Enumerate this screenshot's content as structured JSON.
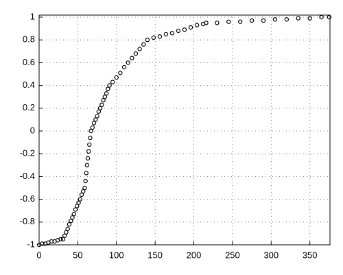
{
  "chart_data": {
    "type": "scatter",
    "x": [
      0,
      4,
      8,
      12,
      16,
      20,
      24,
      28,
      31,
      33,
      35,
      37,
      39,
      41,
      43,
      45,
      47,
      49,
      51,
      53,
      55,
      57,
      59,
      60,
      61,
      62,
      63,
      64,
      65,
      66,
      67,
      69,
      71,
      73,
      75,
      77,
      79,
      81,
      83,
      85,
      87,
      89,
      91,
      95,
      100,
      105,
      110,
      115,
      120,
      125,
      130,
      135,
      140,
      148,
      156,
      164,
      172,
      180,
      188,
      196,
      204,
      212,
      216,
      230,
      245,
      260,
      275,
      290,
      305,
      320,
      335,
      350,
      365,
      375
    ],
    "values": [
      -1,
      -0.99,
      -0.99,
      -0.98,
      -0.97,
      -0.97,
      -0.96,
      -0.95,
      -0.95,
      -0.92,
      -0.89,
      -0.86,
      -0.82,
      -0.79,
      -0.76,
      -0.73,
      -0.69,
      -0.66,
      -0.63,
      -0.6,
      -0.56,
      -0.53,
      -0.5,
      -0.44,
      -0.37,
      -0.3,
      -0.24,
      -0.18,
      -0.12,
      -0.06,
      0,
      0.03,
      0.07,
      0.1,
      0.13,
      0.17,
      0.2,
      0.23,
      0.27,
      0.3,
      0.33,
      0.37,
      0.4,
      0.43,
      0.47,
      0.51,
      0.56,
      0.6,
      0.64,
      0.68,
      0.72,
      0.76,
      0.8,
      0.82,
      0.83,
      0.85,
      0.86,
      0.88,
      0.89,
      0.91,
      0.93,
      0.94,
      0.95,
      0.95,
      0.96,
      0.96,
      0.97,
      0.97,
      0.98,
      0.98,
      0.99,
      0.99,
      1,
      1
    ],
    "color": "#000000",
    "xlim": [
      0,
      376
    ],
    "xticks": [
      0,
      50,
      100,
      150,
      200,
      250,
      300,
      350
    ],
    "ylim": [
      -1,
      1
    ],
    "yticks": [
      -1,
      -0.8,
      -0.6,
      -0.4,
      -0.2,
      0,
      0.2,
      0.4,
      0.6,
      0.8,
      1
    ],
    "grid": true
  }
}
